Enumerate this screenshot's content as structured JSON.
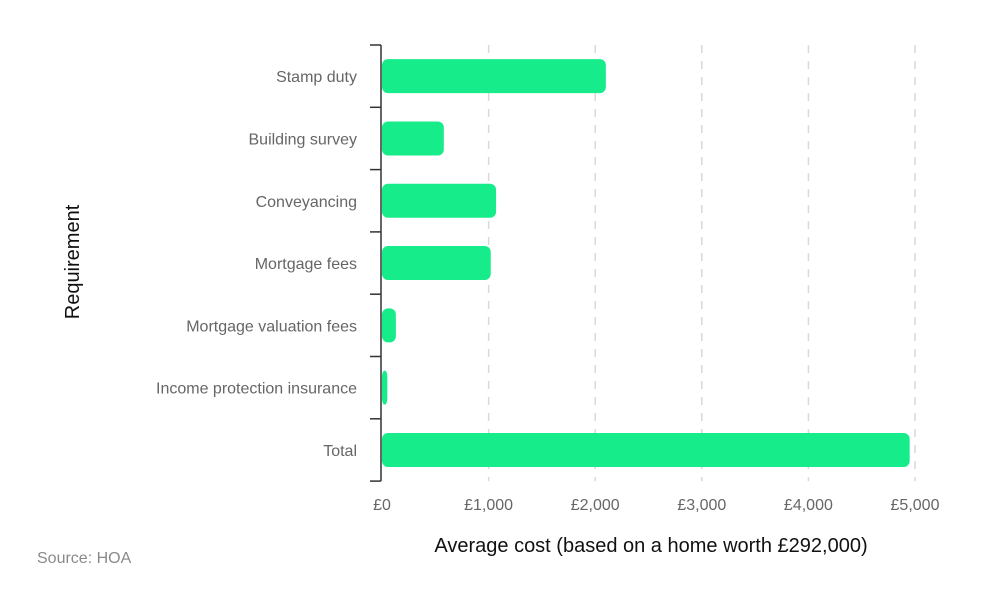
{
  "chart_data": {
    "type": "bar",
    "orientation": "horizontal",
    "categories": [
      "Stamp duty",
      "Building survey",
      "Conveyancing",
      "Mortgage fees",
      "Mortgage valuation fees",
      "Income protection insurance",
      "Total"
    ],
    "values": [
      2100,
      580,
      1070,
      1020,
      130,
      50,
      4950
    ],
    "xlabel": "Average cost (based on a home worth £292,000)",
    "ylabel": "Requirement",
    "xlim": [
      0,
      5000
    ],
    "xticks": [
      0,
      1000,
      2000,
      3000,
      4000,
      5000
    ],
    "xtick_labels": [
      "£0",
      "£1,000",
      "£2,000",
      "£3,000",
      "£4,000",
      "£5,000"
    ],
    "grid": "vertical dashed",
    "bar_color": "#17ec8a",
    "legend": "none"
  },
  "source": "Source: HOA"
}
